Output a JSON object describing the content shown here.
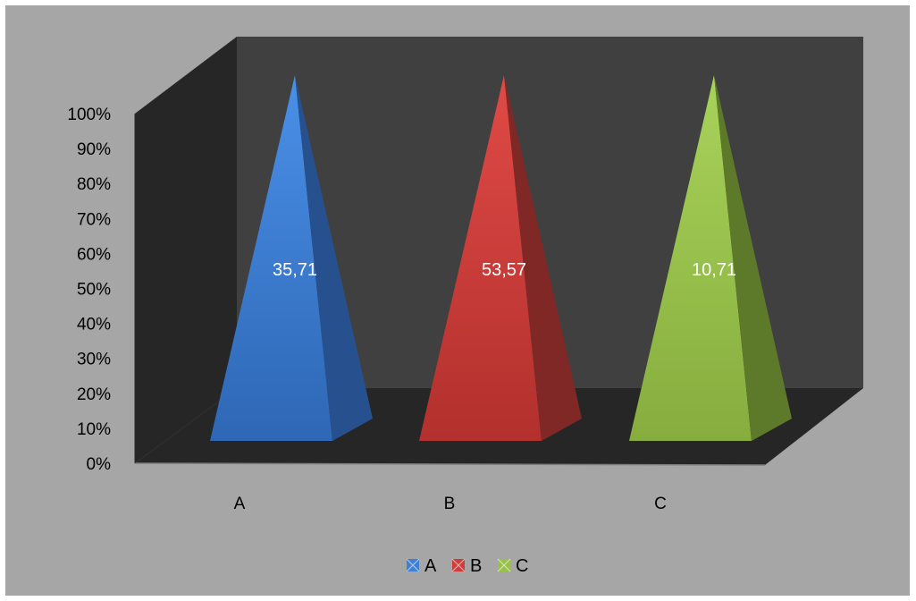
{
  "chart_data": {
    "type": "bar",
    "shape": "3d-pyramid",
    "stacking": "100%",
    "categories": [
      "A",
      "B",
      "C"
    ],
    "series": [
      {
        "name": "A",
        "color": "#3f7fd4",
        "values": [
          35.71,
          null,
          null
        ]
      },
      {
        "name": "B",
        "color": "#cf3d3a",
        "values": [
          null,
          53.57,
          null
        ]
      },
      {
        "name": "C",
        "color": "#98c14a",
        "values": [
          null,
          null,
          10.71
        ]
      }
    ],
    "data_labels": [
      "35,71",
      "53,57",
      "10,71"
    ],
    "yticks": [
      "0%",
      "10%",
      "20%",
      "30%",
      "40%",
      "50%",
      "60%",
      "70%",
      "80%",
      "90%",
      "100%"
    ],
    "ylim": [
      0,
      100
    ],
    "legend": {
      "position": "bottom",
      "entries": [
        "A",
        "B",
        "C"
      ]
    },
    "colors": {
      "background": "#a6a6a6",
      "wall": "#404040",
      "side_wall": "#262626",
      "floor": "#262626"
    }
  }
}
